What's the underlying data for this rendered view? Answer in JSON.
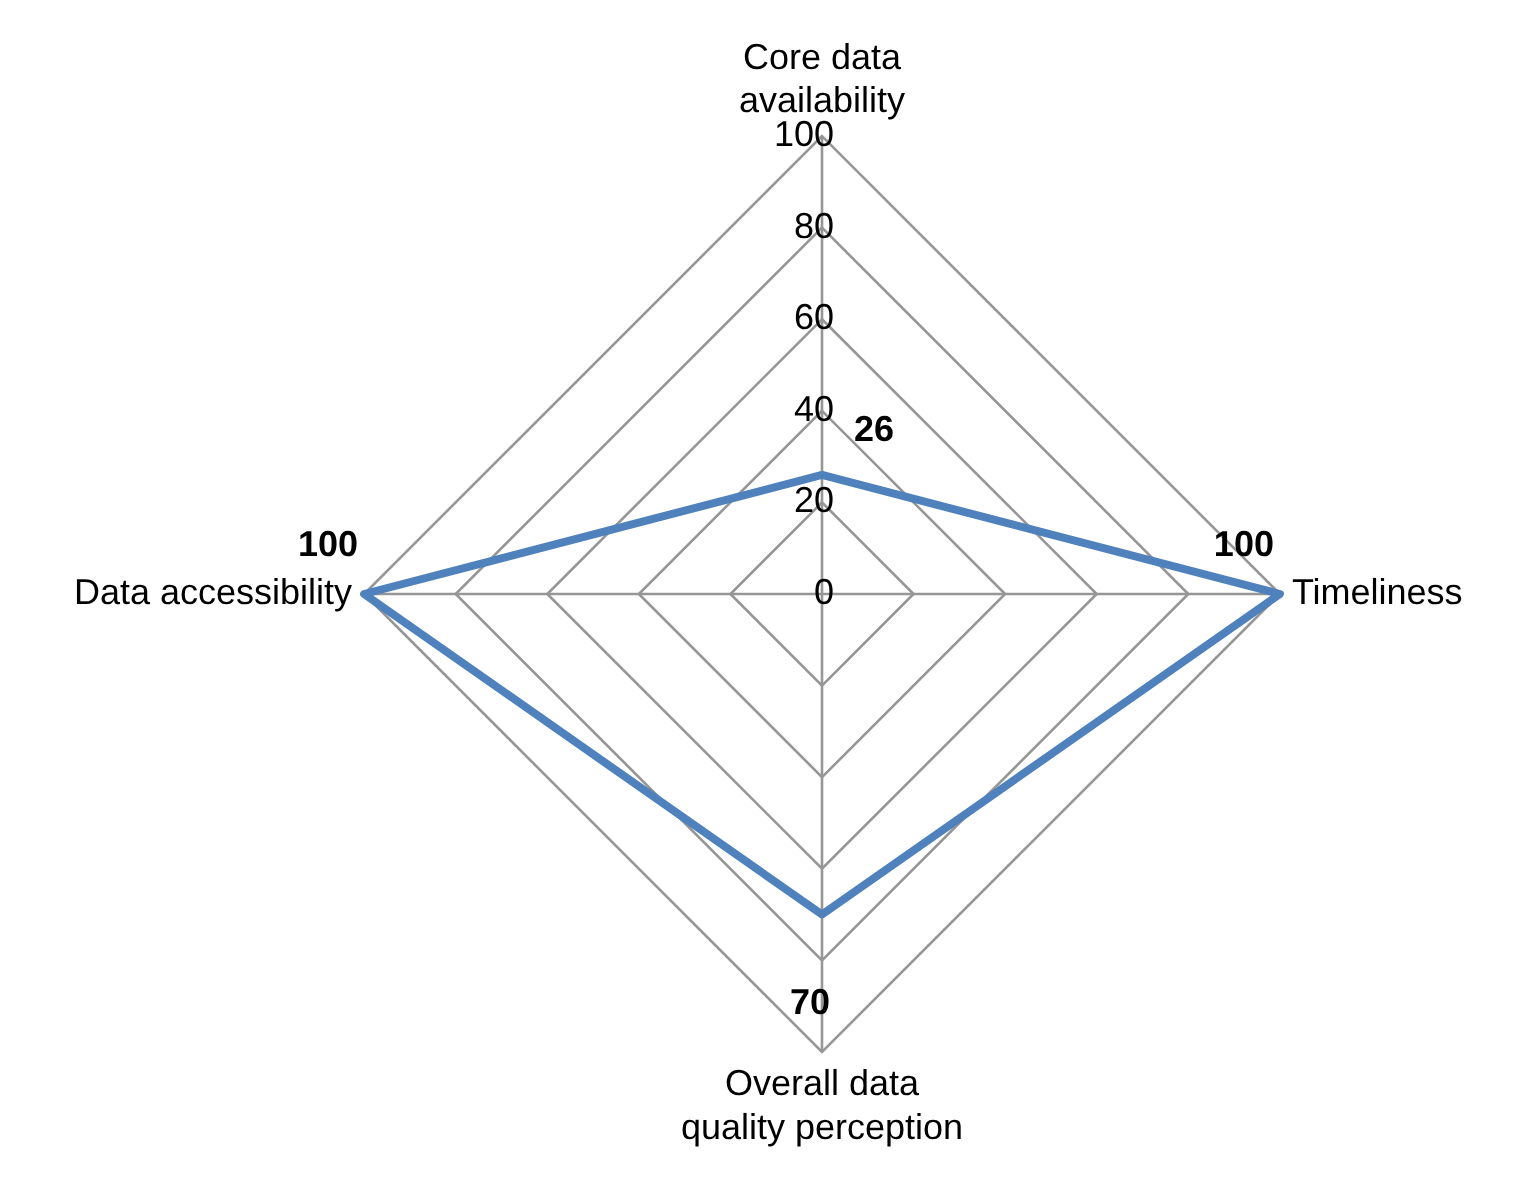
{
  "chart_data": {
    "type": "radar",
    "categories": [
      "Core data availability",
      "Timeliness",
      "Overall data quality perception",
      "Data accessibility"
    ],
    "series": [
      {
        "color": "#4f81bd",
        "values": [
          26,
          100,
          70,
          100
        ]
      }
    ],
    "ylim": [
      0,
      100
    ],
    "yticks": [
      0,
      20,
      40,
      60,
      80,
      100
    ],
    "grid": true,
    "legend": false,
    "marker": "none",
    "data_labels": true
  }
}
